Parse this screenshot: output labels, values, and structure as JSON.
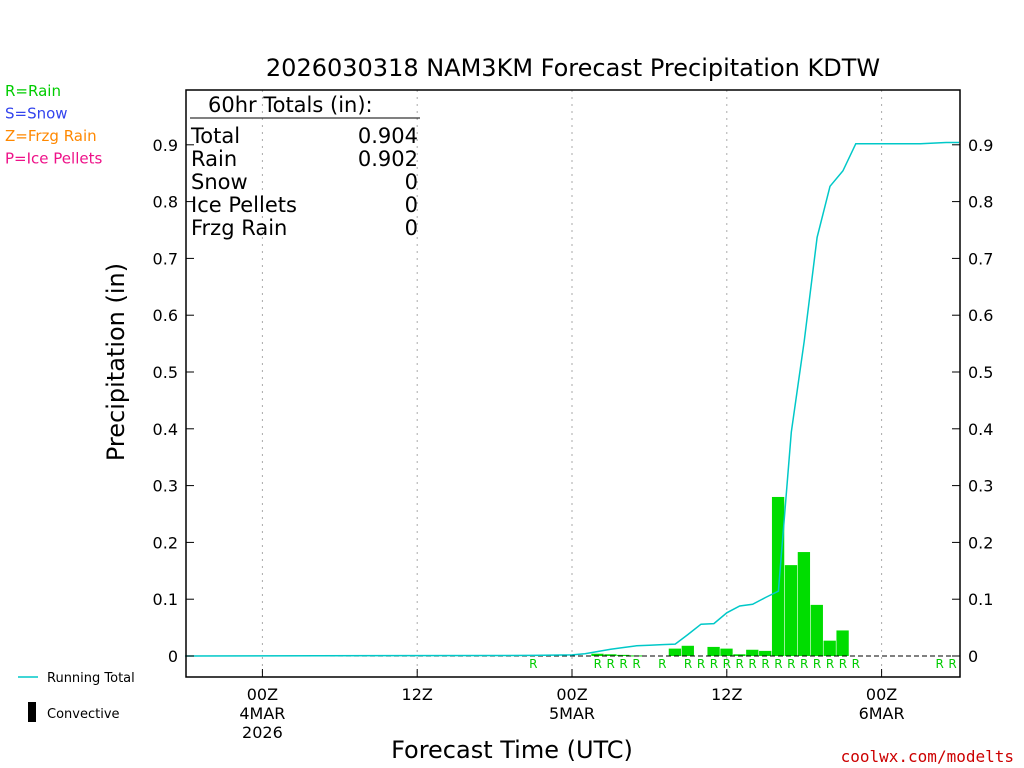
{
  "chart_data": {
    "type": "bar",
    "title": "2026030318 NAM3KM Forecast Precipitation KDTW",
    "xlabel": "Forecast Time (UTC)",
    "ylabel": "Precipitation (in)",
    "ylim": [
      0,
      1.0
    ],
    "yticks": [
      "0",
      "0.1",
      "0.2",
      "0.3",
      "0.4",
      "0.5",
      "0.6",
      "0.7",
      "0.8",
      "0.9"
    ],
    "x_ticks": [
      {
        "hour": 6,
        "lines": [
          "00Z",
          "4MAR",
          "2026"
        ]
      },
      {
        "hour": 18,
        "lines": [
          "12Z"
        ]
      },
      {
        "hour": 30,
        "lines": [
          "00Z",
          "5MAR"
        ]
      },
      {
        "hour": 42,
        "lines": [
          "12Z"
        ]
      },
      {
        "hour": 54,
        "lines": [
          "00Z",
          "6MAR"
        ]
      }
    ],
    "xlim_hours": [
      0,
      60
    ],
    "grid": "vertical dotted at tick hours",
    "precip_type_legend": [
      {
        "text": "R=Rain",
        "color": "#00cc00"
      },
      {
        "text": "S=Snow",
        "color": "#3344ee"
      },
      {
        "text": "Z=Frzg Rain",
        "color": "#ff8800"
      },
      {
        "text": "P=Ice Pellets",
        "color": "#ee1188"
      }
    ],
    "series_legend": [
      {
        "text": "Running Total",
        "color": "#00c8c8"
      },
      {
        "text": "Convective",
        "color": "#000000"
      }
    ],
    "totals": {
      "header": "60hr Totals (in):",
      "rows": [
        {
          "label": "Total",
          "value": "0.904"
        },
        {
          "label": "Rain",
          "value": "0.902"
        },
        {
          "label": "Snow",
          "value": "0"
        },
        {
          "label": "Ice Pellets",
          "value": "0"
        },
        {
          "label": "Frzg Rain",
          "value": "0"
        }
      ]
    },
    "hourly_bars": [
      {
        "hour": 32,
        "value": 0.004
      },
      {
        "hour": 33,
        "value": 0.003
      },
      {
        "hour": 34,
        "value": 0.002
      },
      {
        "hour": 35,
        "value": 0.001
      },
      {
        "hour": 38,
        "value": 0.013
      },
      {
        "hour": 39,
        "value": 0.018
      },
      {
        "hour": 41,
        "value": 0.016
      },
      {
        "hour": 42,
        "value": 0.013
      },
      {
        "hour": 43,
        "value": 0.003
      },
      {
        "hour": 44,
        "value": 0.011
      },
      {
        "hour": 45,
        "value": 0.009
      },
      {
        "hour": 46,
        "value": 0.28
      },
      {
        "hour": 47,
        "value": 0.16
      },
      {
        "hour": 48,
        "value": 0.183
      },
      {
        "hour": 49,
        "value": 0.09
      },
      {
        "hour": 50,
        "value": 0.027
      },
      {
        "hour": 51,
        "value": 0.045
      }
    ],
    "running_total": {
      "x": [
        0,
        27,
        30,
        31,
        32,
        33,
        34,
        35,
        36,
        37,
        38,
        39,
        40,
        41,
        42,
        43,
        44,
        45,
        46,
        47,
        48,
        49,
        50,
        51,
        52,
        53,
        54,
        55,
        56,
        57,
        58,
        59,
        60
      ],
      "y": [
        0,
        0.001,
        0.002,
        0.004,
        0.008,
        0.012,
        0.015,
        0.018,
        0.019,
        0.02,
        0.021,
        0.038,
        0.056,
        0.057,
        0.076,
        0.088,
        0.091,
        0.103,
        0.114,
        0.394,
        0.554,
        0.737,
        0.827,
        0.854,
        0.902,
        0.902,
        0.902,
        0.902,
        0.902,
        0.902,
        0.903,
        0.904,
        0.904
      ]
    },
    "ptype_labels": [
      {
        "hour": 27,
        "text": "R"
      },
      {
        "hour": 32,
        "text": "R"
      },
      {
        "hour": 33,
        "text": "R"
      },
      {
        "hour": 34,
        "text": "R"
      },
      {
        "hour": 35,
        "text": "R"
      },
      {
        "hour": 37,
        "text": "R"
      },
      {
        "hour": 39,
        "text": "R"
      },
      {
        "hour": 40,
        "text": "R"
      },
      {
        "hour": 41,
        "text": "R"
      },
      {
        "hour": 42,
        "text": "R"
      },
      {
        "hour": 43,
        "text": "R"
      },
      {
        "hour": 44,
        "text": "R"
      },
      {
        "hour": 45,
        "text": "R"
      },
      {
        "hour": 46,
        "text": "R"
      },
      {
        "hour": 47,
        "text": "R"
      },
      {
        "hour": 48,
        "text": "R"
      },
      {
        "hour": 49,
        "text": "R"
      },
      {
        "hour": 50,
        "text": "R"
      },
      {
        "hour": 51,
        "text": "R"
      },
      {
        "hour": 52,
        "text": "R"
      },
      {
        "hour": 58.5,
        "text": "R"
      },
      {
        "hour": 59.5,
        "text": "R"
      }
    ],
    "credit": "coolwx.com/modelts",
    "colors": {
      "bar": "#00dd00",
      "running_total": "#00c8c8",
      "grid": "#aaaaaa"
    }
  }
}
